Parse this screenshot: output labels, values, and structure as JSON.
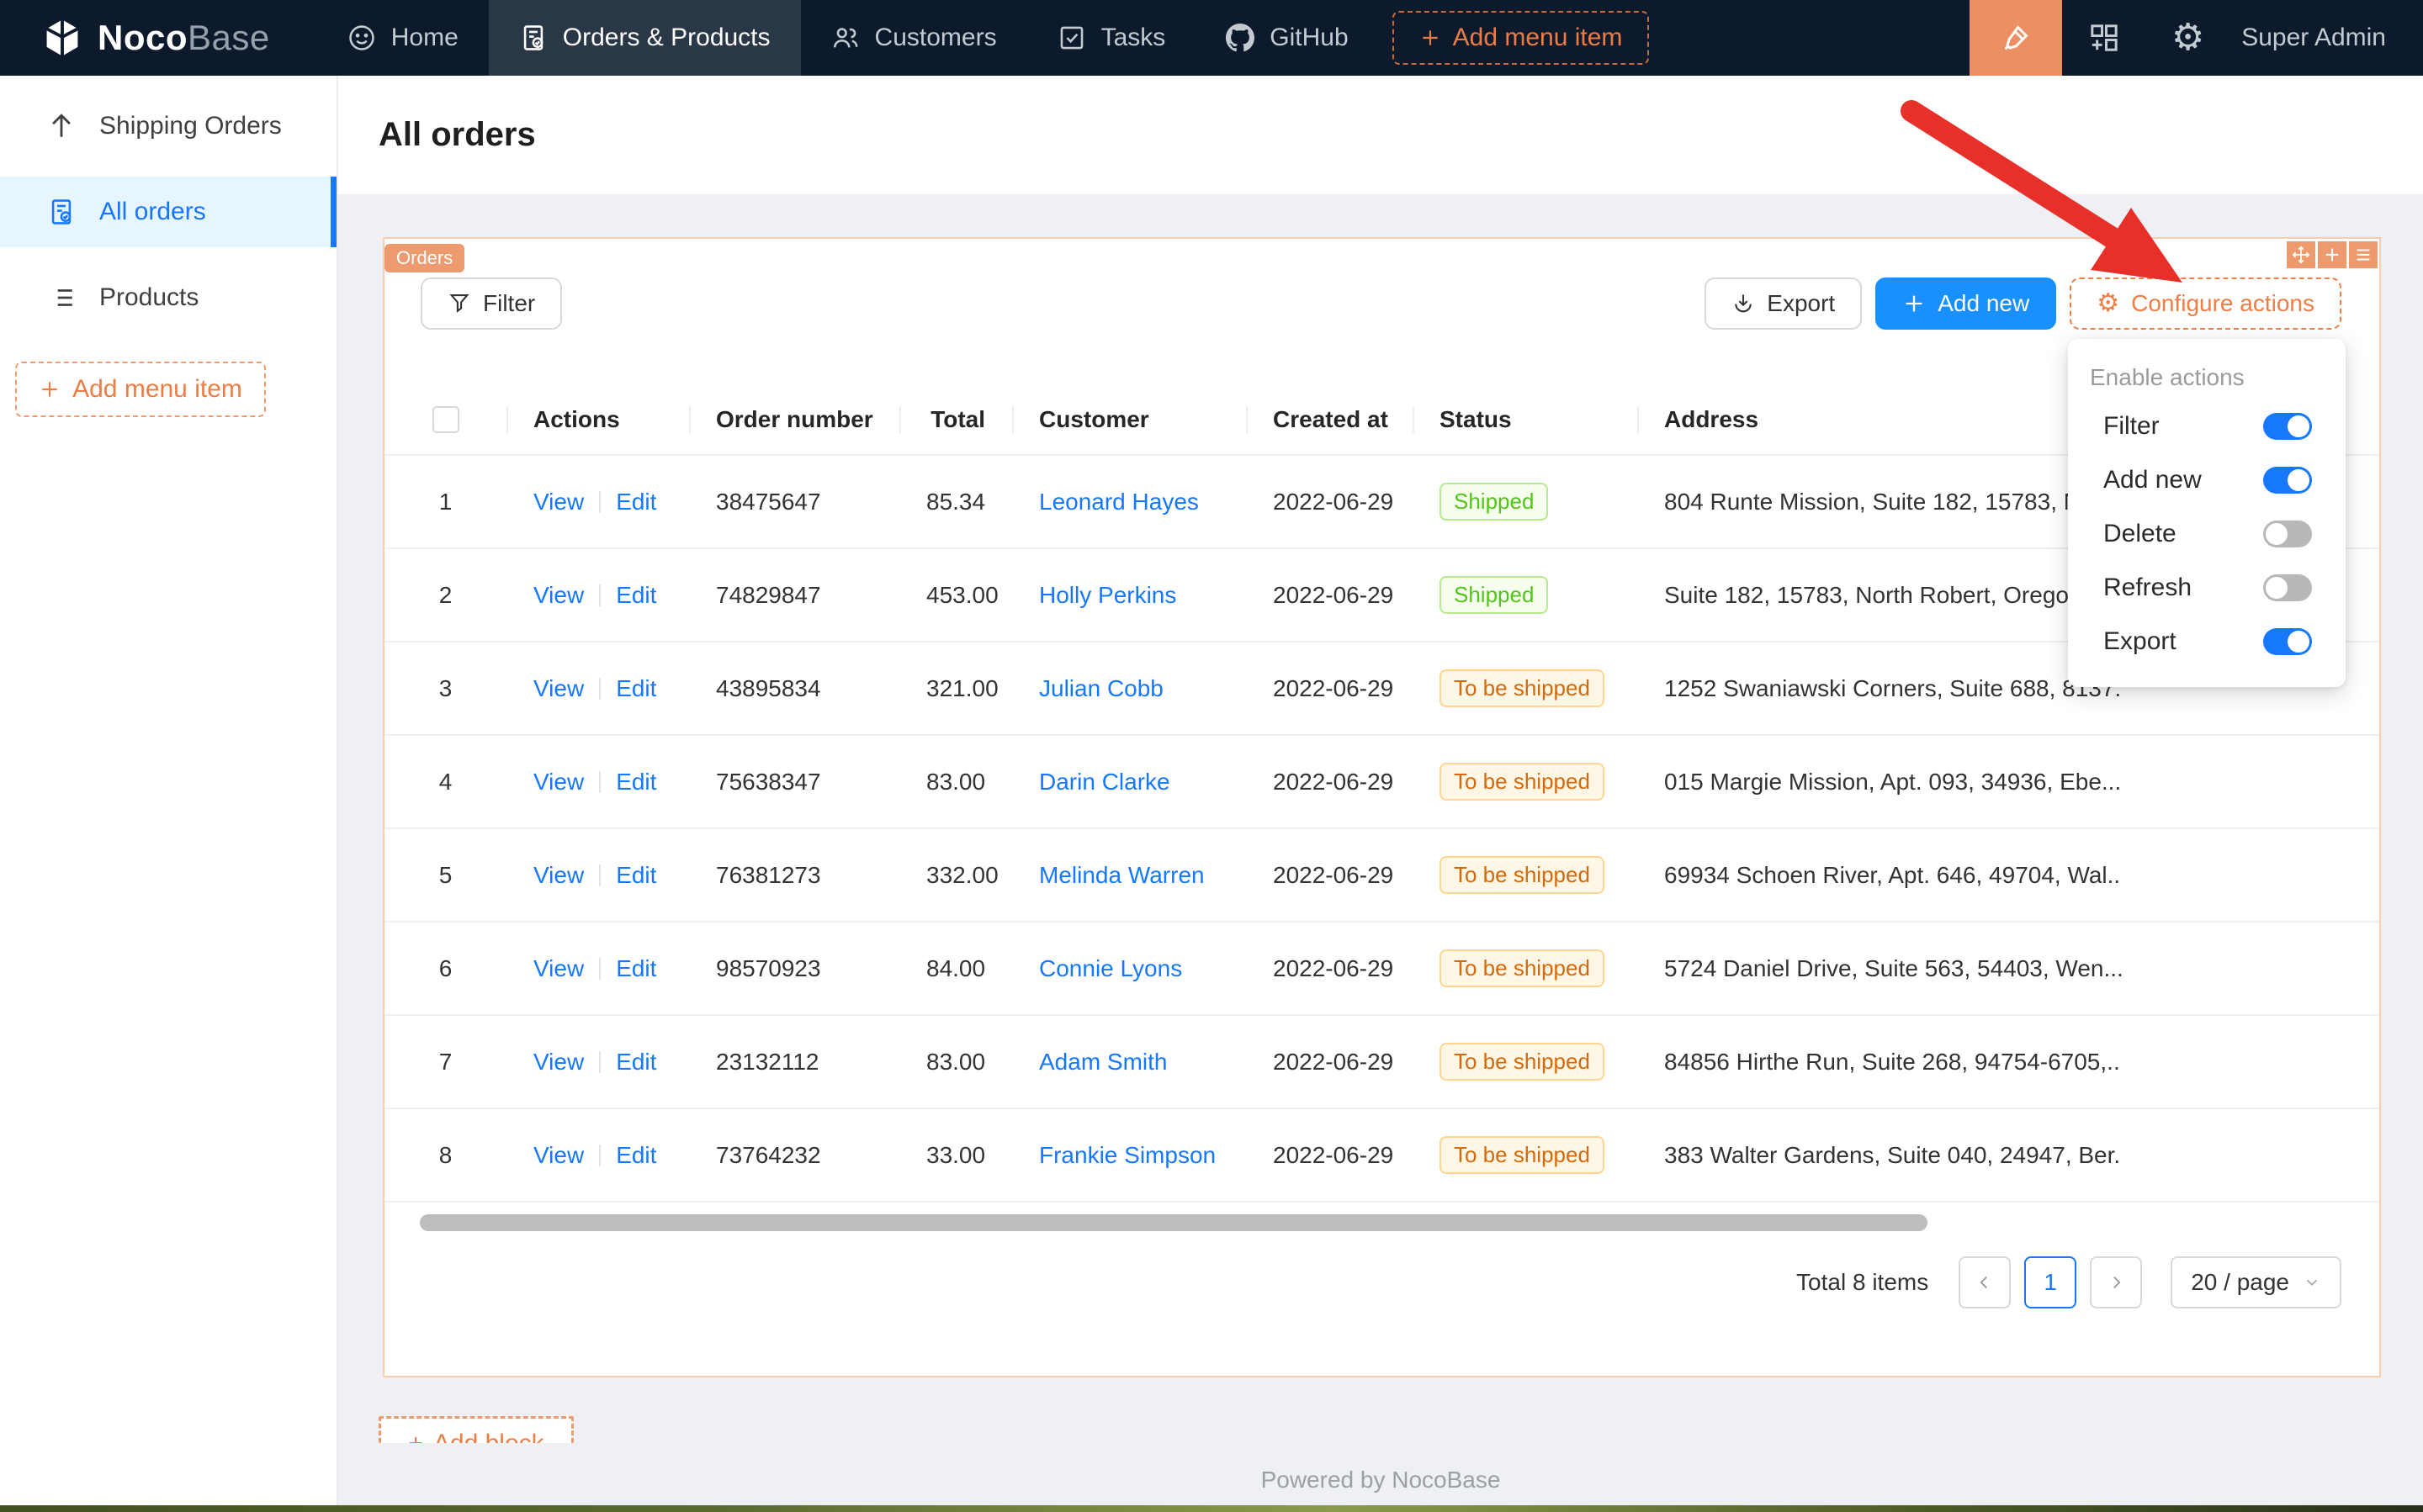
{
  "navbar": {
    "logo_bold": "Noco",
    "logo_light": "Base",
    "items": [
      {
        "label": "Home"
      },
      {
        "label": "Orders & Products"
      },
      {
        "label": "Customers"
      },
      {
        "label": "Tasks"
      },
      {
        "label": "GitHub"
      }
    ],
    "add_menu_item": "Add menu item",
    "user": "Super Admin"
  },
  "sidebar": {
    "items": [
      {
        "label": "Shipping Orders"
      },
      {
        "label": "All orders"
      },
      {
        "label": "Products"
      }
    ],
    "add_menu_item": "Add menu item"
  },
  "page": {
    "title": "All orders",
    "footer": "Powered by NocoBase"
  },
  "orders_block": {
    "tag": "Orders",
    "toolbar": {
      "filter": "Filter",
      "export": "Export",
      "add_new": "Add new",
      "configure_actions": "Configure actions"
    },
    "table": {
      "headers": [
        "Actions",
        "Order number",
        "Total",
        "Customer",
        "Created at",
        "Status",
        "Address"
      ],
      "link_view": "View",
      "link_edit": "Edit",
      "rows": [
        {
          "index": "1",
          "order_number": "38475647",
          "total": "85.34",
          "customer": "Leonard Hayes",
          "created_at": "2022-06-29",
          "status": "Shipped",
          "status_type": "green",
          "address": "804 Runte Mission, Suite 182, 15783, N..."
        },
        {
          "index": "2",
          "order_number": "74829847",
          "total": "453.00",
          "customer": "Holly Perkins",
          "created_at": "2022-06-29",
          "status": "Shipped",
          "status_type": "green",
          "address": "Suite 182, 15783, North Robert, Oregon..."
        },
        {
          "index": "3",
          "order_number": "43895834",
          "total": "321.00",
          "customer": "Julian Cobb",
          "created_at": "2022-06-29",
          "status": "To be shipped",
          "status_type": "orange",
          "address": "1252 Swaniawski Corners, Suite 688, 8137..."
        },
        {
          "index": "4",
          "order_number": "75638347",
          "total": "83.00",
          "customer": "Darin Clarke",
          "created_at": "2022-06-29",
          "status": "To be shipped",
          "status_type": "orange",
          "address": "015 Margie Mission, Apt. 093, 34936, Ebe..."
        },
        {
          "index": "5",
          "order_number": "76381273",
          "total": "332.00",
          "customer": "Melinda Warren",
          "created_at": "2022-06-29",
          "status": "To be shipped",
          "status_type": "orange",
          "address": "69934 Schoen River, Apt. 646, 49704, Wal..."
        },
        {
          "index": "6",
          "order_number": "98570923",
          "total": "84.00",
          "customer": "Connie Lyons",
          "created_at": "2022-06-29",
          "status": "To be shipped",
          "status_type": "orange",
          "address": "5724 Daniel Drive, Suite 563, 54403, Wen..."
        },
        {
          "index": "7",
          "order_number": "23132112",
          "total": "83.00",
          "customer": "Adam Smith",
          "created_at": "2022-06-29",
          "status": "To be shipped",
          "status_type": "orange",
          "address": "84856 Hirthe Run, Suite 268, 94754-6705,..."
        },
        {
          "index": "8",
          "order_number": "73764232",
          "total": "33.00",
          "customer": "Frankie Simpson",
          "created_at": "2022-06-29",
          "status": "To be shipped",
          "status_type": "orange",
          "address": "383 Walter Gardens, Suite 040, 24947, Ber..."
        }
      ]
    },
    "pagination": {
      "total": "Total 8 items",
      "current_page": "1",
      "page_size": "20 / page"
    },
    "add_block": "Add block"
  },
  "dropdown": {
    "title": "Enable actions",
    "items": [
      {
        "label": "Filter",
        "enabled": true
      },
      {
        "label": "Add new",
        "enabled": true
      },
      {
        "label": "Delete",
        "enabled": false
      },
      {
        "label": "Refresh",
        "enabled": false
      },
      {
        "label": "Export",
        "enabled": true
      }
    ]
  },
  "colors": {
    "accent_orange": "#ed7d46",
    "tag_orange": "#ed9a6f",
    "primary_blue": "#1677ff",
    "add_new_blue": "#1890ff",
    "navbar_bg": "#0c1a2b",
    "status_green": "#52c41a",
    "status_orange": "#d4690b",
    "annotation_red": "#e8302a"
  }
}
